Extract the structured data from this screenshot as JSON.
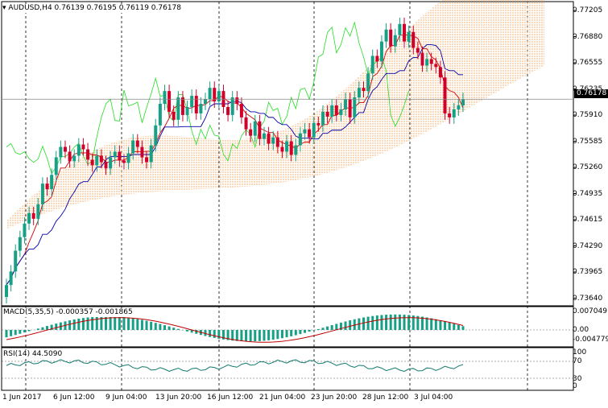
{
  "header": {
    "symbol": "AUDUSD,H4",
    "ohlc": "0.76139 0.76195 0.76119 0.76178",
    "macd_label": "MACD(5,35,5) -0.000357 -0.001865",
    "rsi_label": "RSI(14) 44.5090"
  },
  "colors": {
    "bull": "#16a085",
    "bear": "#d0002a",
    "tenkan": "#d40000",
    "kijun": "#0000aa",
    "chikou": "#22dd22",
    "cloud": "#f0a050",
    "macd_signal": "#c00000",
    "rsi": "#117a6f"
  },
  "price_axis": {
    "labels": [
      "0.77205",
      "0.76880",
      "0.76555",
      "0.76235",
      "0.75910",
      "0.75585",
      "0.75260",
      "0.74935",
      "0.74615",
      "0.74290",
      "0.73965",
      "0.73640"
    ],
    "current": "0.76178"
  },
  "macd_axis": {
    "labels": [
      "0.007049",
      "0.00",
      "-0.004779"
    ]
  },
  "rsi_axis": {
    "labels": [
      "100",
      "70",
      "30",
      "0"
    ]
  },
  "time_axis": {
    "labels": [
      "1 Jun 2017",
      "6 Jun 12:00",
      "9 Jun 04:00",
      "13 Jun 20:00",
      "16 Jun 12:00",
      "21 Jun 04:00",
      "23 Jun 20:00",
      "28 Jun 12:00",
      "3 Jul 04:00"
    ]
  },
  "chart_data": {
    "type": "candlestick",
    "title": "AUDUSD,H4",
    "ylim": [
      0.7364,
      0.7735
    ],
    "close_last": 0.76178,
    "closes": [
      0.7385,
      0.7402,
      0.7428,
      0.7445,
      0.7462,
      0.7475,
      0.7468,
      0.7486,
      0.7512,
      0.7505,
      0.7523,
      0.7545,
      0.7558,
      0.7552,
      0.754,
      0.7547,
      0.7561,
      0.7555,
      0.7542,
      0.7535,
      0.7547,
      0.7539,
      0.7531,
      0.7545,
      0.7552,
      0.7541,
      0.7538,
      0.755,
      0.7566,
      0.7558,
      0.7545,
      0.7539,
      0.756,
      0.7585,
      0.7612,
      0.7628,
      0.7602,
      0.7592,
      0.762,
      0.7598,
      0.7608,
      0.7622,
      0.76,
      0.7612,
      0.7618,
      0.7632,
      0.7615,
      0.7628,
      0.7608,
      0.7598,
      0.762,
      0.7612,
      0.7595,
      0.758,
      0.7572,
      0.759,
      0.7568,
      0.7575,
      0.7562,
      0.757,
      0.7558,
      0.7552,
      0.7565,
      0.7548,
      0.756,
      0.7575,
      0.758,
      0.757,
      0.7588,
      0.7585,
      0.7602,
      0.7596,
      0.761,
      0.7598,
      0.7605,
      0.7618,
      0.7595,
      0.762,
      0.7632,
      0.7628,
      0.765,
      0.7672,
      0.7665,
      0.769,
      0.7705,
      0.7684,
      0.7698,
      0.7712,
      0.769,
      0.7702,
      0.7682,
      0.7676,
      0.766,
      0.7668,
      0.7662,
      0.7658,
      0.7645,
      0.76,
      0.7595,
      0.7605,
      0.761,
      0.7618
    ],
    "opens": [
      0.737,
      0.7385,
      0.7402,
      0.7428,
      0.7445,
      0.7462,
      0.7475,
      0.7468,
      0.7486,
      0.7512,
      0.7505,
      0.7523,
      0.7545,
      0.7558,
      0.7552,
      0.754,
      0.7547,
      0.7561,
      0.7555,
      0.7542,
      0.7535,
      0.7547,
      0.7539,
      0.7531,
      0.7545,
      0.7552,
      0.7541,
      0.7538,
      0.755,
      0.7566,
      0.7558,
      0.7545,
      0.7539,
      0.756,
      0.7585,
      0.7612,
      0.7628,
      0.7602,
      0.7592,
      0.762,
      0.7598,
      0.7608,
      0.7622,
      0.76,
      0.7612,
      0.7618,
      0.7632,
      0.7615,
      0.7628,
      0.7608,
      0.7598,
      0.762,
      0.7612,
      0.7595,
      0.758,
      0.7572,
      0.759,
      0.7568,
      0.7575,
      0.7562,
      0.757,
      0.7558,
      0.7552,
      0.7565,
      0.7548,
      0.756,
      0.7575,
      0.758,
      0.757,
      0.7588,
      0.7585,
      0.7602,
      0.7596,
      0.761,
      0.7598,
      0.7605,
      0.7618,
      0.7595,
      0.762,
      0.7632,
      0.7628,
      0.765,
      0.7672,
      0.7665,
      0.769,
      0.7705,
      0.7684,
      0.7698,
      0.7712,
      0.769,
      0.7702,
      0.7682,
      0.7676,
      0.766,
      0.7668,
      0.7662,
      0.7658,
      0.7645,
      0.76,
      0.7595,
      0.7605,
      0.761
    ]
  }
}
